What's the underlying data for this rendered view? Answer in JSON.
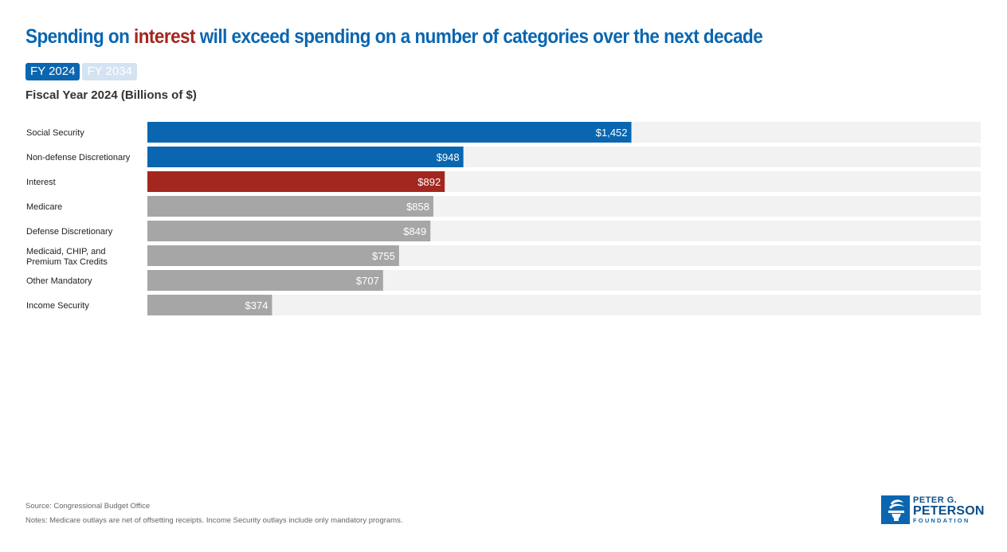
{
  "title": {
    "before": "Spending on ",
    "highlight": "interest",
    "after": " will exceed spending on a number of categories over the next decade"
  },
  "toggles": {
    "fy2024": "FY 2024",
    "fy2034": "FY 2034",
    "selected": "FY 2024"
  },
  "subtitle": "Fiscal Year 2024 (Billions of $)",
  "colors": {
    "blue": "#0a66b0",
    "red": "#a3261f",
    "gray": "#a6a6a6",
    "track": "#f2f2f2"
  },
  "chart_data": {
    "type": "bar",
    "orientation": "horizontal",
    "title": "Fiscal Year 2024 (Billions of $)",
    "xlim": [
      0,
      2500
    ],
    "grid": false,
    "categories": [
      "Social Security",
      "Non-defense Discretionary",
      "Interest",
      "Medicare",
      "Defense Discretionary",
      "Medicaid, CHIP, and Premium Tax Credits",
      "Other Mandatory",
      "Income Security"
    ],
    "label_lines": [
      [
        "Social Security"
      ],
      [
        "Non-defense Discretionary"
      ],
      [
        "Interest"
      ],
      [
        "Medicare"
      ],
      [
        "Defense Discretionary"
      ],
      [
        "Medicaid, CHIP, and",
        "Premium Tax Credits"
      ],
      [
        "Other Mandatory"
      ],
      [
        "Income Security"
      ]
    ],
    "values": [
      1452,
      948,
      892,
      858,
      849,
      755,
      707,
      374
    ],
    "value_labels": [
      "$1,452",
      "$948",
      "$892",
      "$858",
      "$849",
      "$755",
      "$707",
      "$374"
    ],
    "bar_colors": [
      "blue",
      "blue",
      "red",
      "gray",
      "gray",
      "gray",
      "gray",
      "gray"
    ]
  },
  "footer": {
    "source": "Source: Congressional Budget Office",
    "notes": "Notes: Medicare outlays are net of offsetting receipts. Income Security outlays include only mandatory programs."
  },
  "logo": {
    "line1": "PETER G.",
    "line2": "PETERSON",
    "line3": "FOUNDATION"
  }
}
